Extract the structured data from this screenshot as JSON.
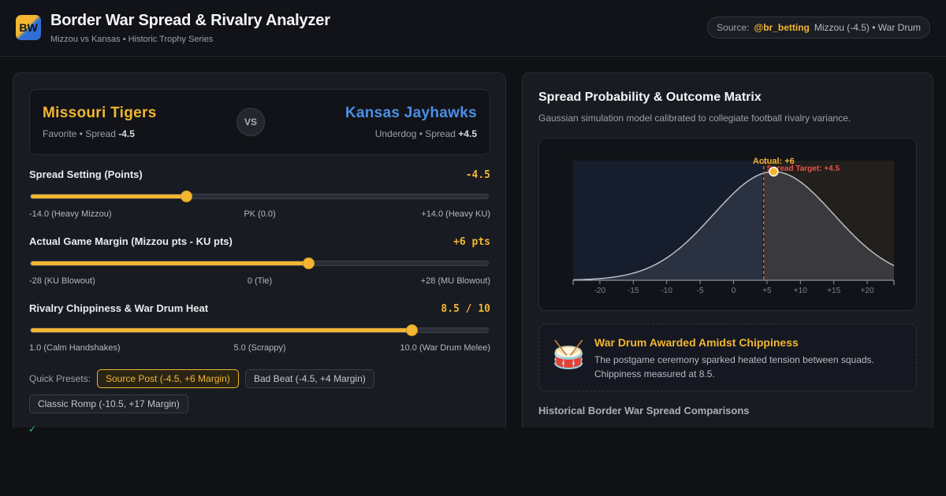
{
  "header": {
    "logo_text": "BW",
    "title": "Border War Spread & Rivalry Analyzer",
    "subtitle": "Mizzou vs Kansas • Historic Trophy Series",
    "source_prefix": "Source:",
    "source_handle": "@br_betting",
    "source_info": "Mizzou (-4.5) • War Drum"
  },
  "matchup": {
    "home_team": "Missouri Tigers",
    "home_role": "Favorite • Spread ",
    "home_spread": "-4.5",
    "vs": "VS",
    "away_team": "Kansas Jayhawks",
    "away_role": "Underdog • Spread ",
    "away_spread": "+4.5"
  },
  "controls": [
    {
      "label": "Spread Setting (Points)",
      "value_text": "-4.5",
      "value": -4.5,
      "min": -14,
      "max": 14,
      "tick_left": "-14.0 (Heavy Mizzou)",
      "tick_mid": "PK (0.0)",
      "tick_right": "+14.0 (Heavy KU)"
    },
    {
      "label": "Actual Game Margin (Mizzou pts - KU pts)",
      "value_text": "+6 pts",
      "value": 6,
      "min": -28,
      "max": 28,
      "tick_left": "-28 (KU Blowout)",
      "tick_mid": "0 (Tie)",
      "tick_right": "+28 (MU Blowout)"
    },
    {
      "label": "Rivalry Chippiness & War Drum Heat",
      "value_text": "8.5 / 10",
      "value": 8.5,
      "min": 1,
      "max": 10,
      "tick_left": "1.0 (Calm Handshakes)",
      "tick_mid": "5.0 (Scrappy)",
      "tick_right": "10.0 (War Drum Melee)"
    }
  ],
  "presets": {
    "label": "Quick Presets:",
    "items": [
      "Source Post (-4.5, +6 Margin)",
      "Bad Beat (-4.5, +4 Margin)",
      "Classic Romp (-10.5, +17 Margin)"
    ],
    "active_index": 0
  },
  "status_glyph": "✓",
  "right": {
    "title": "Spread Probability & Outcome Matrix",
    "subtitle": "Gaussian simulation model calibrated to collegiate football rivalry variance.",
    "event": {
      "icon": "drum-icon",
      "icon_glyph": "🥁",
      "title": "War Drum Awarded Amidst Chippiness",
      "text": "The postgame ceremony sparked heated tension between squads. Chippiness measured at 8.5."
    },
    "history_title": "Historical Border War Spread Comparisons"
  },
  "chart_data": {
    "type": "area",
    "x_ticks": [
      "-20",
      "-15",
      "-10",
      "-5",
      "0",
      "+5",
      "+10",
      "+15",
      "+20"
    ],
    "xlim": [
      -24,
      24
    ],
    "distribution": "gaussian",
    "mean": 6,
    "stdev": 9,
    "spread_target": 4.5,
    "actual_margin": 6,
    "spread_label": "Spread Target: +4.5",
    "actual_label": "Actual: +6",
    "colors": {
      "fail_region": "#161d2c",
      "cover_region": "#221f1c",
      "curve": "#b9bec7",
      "target_line": "#e8534a",
      "actual_point": "#f2b632",
      "actual_label": "#f2b632"
    }
  }
}
